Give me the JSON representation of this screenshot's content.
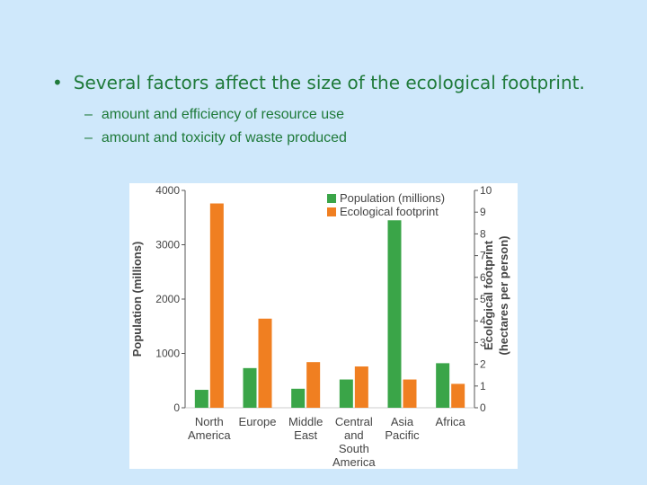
{
  "slide": {
    "bullet": "Several factors affect the size of the ecological footprint.",
    "bullet_marker": "•",
    "sub_marker": "–",
    "subpoints": [
      "amount and efficiency of resource use",
      "amount and toxicity of waste produced"
    ],
    "text_color": "#1f7a3a",
    "background": "#cfe8fb"
  },
  "chart_data": {
    "type": "bar",
    "categories": [
      [
        "North",
        "America"
      ],
      [
        "Europe"
      ],
      [
        "Middle",
        "East"
      ],
      [
        "Central",
        "and",
        "South",
        "America"
      ],
      [
        "Asia",
        "Pacific"
      ],
      [
        "Africa"
      ]
    ],
    "series": [
      {
        "name": "Population (millions)",
        "axis": "left",
        "color": "#3aa548",
        "values": [
          330,
          730,
          350,
          520,
          3450,
          820
        ]
      },
      {
        "name": "Ecological footprint",
        "axis": "right",
        "color": "#f07f21",
        "values": [
          9.4,
          4.1,
          2.1,
          1.9,
          1.3,
          1.1
        ]
      }
    ],
    "ylabel_left": "Population (millions)",
    "ylabel_right": [
      "Ecological footprint",
      "(hectares per person)"
    ],
    "ylim_left": [
      0,
      4000
    ],
    "ylim_right": [
      0,
      10
    ],
    "yticks_left": [
      "0",
      "1000",
      "2000",
      "3000",
      "4000"
    ],
    "yticks_right": [
      "0",
      "1",
      "2",
      "3",
      "4",
      "5",
      "6",
      "7",
      "8",
      "9",
      "10"
    ],
    "legend_position": "top-right",
    "grid": false
  }
}
